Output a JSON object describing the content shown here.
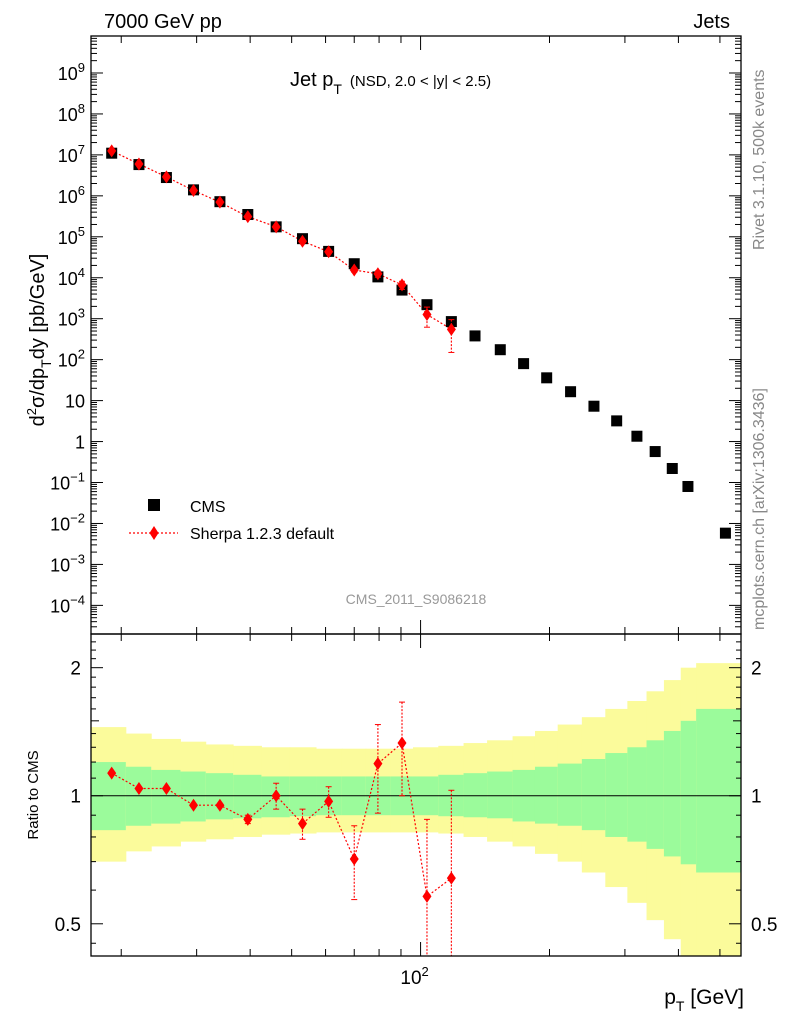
{
  "header": {
    "left": "7000 GeV pp",
    "right": "Jets"
  },
  "plot_title": {
    "main": "Jet p",
    "sub": "T",
    "detail": "(NSD, 2.0 < |y| < 2.5)"
  },
  "side_text": {
    "rivet": "Rivet 3.1.10,  500k events",
    "mcplots": "mcplots.cern.ch [arXiv:1306.3436]"
  },
  "analysis_id": "CMS_2011_S9086218",
  "legend": {
    "cms": "CMS",
    "sherpa": "Sherpa 1.2.3 default"
  },
  "axes": {
    "ylabel_main": "d²σ/dp_T dy [pb/GeV]",
    "ylabel_ratio": "Ratio to CMS",
    "xlabel": "p_T [GeV]"
  },
  "colors": {
    "data": "#000000",
    "mc": "#ff0000",
    "band_inner": "#9bfb9b",
    "band_outer": "#fbfb9b"
  },
  "chart_data": [
    {
      "type": "scatter",
      "title": "Jet pT (NSD, 2.0 < |y| < 2.5)",
      "xlabel": "pT [GeV]",
      "ylabel": "d2σ/dpT dy [pb/GeV]",
      "xscale": "log",
      "yscale": "log",
      "xlim": [
        17,
        560
      ],
      "ylim": [
        2e-05,
        8000000000
      ],
      "y_tick_labels": [
        "10^-4",
        "10^-3",
        "10^-2",
        "10^-1",
        "1",
        "10",
        "10^2",
        "10^3",
        "10^4",
        "10^5",
        "10^6",
        "10^7",
        "10^8",
        "10^9"
      ],
      "legend_position": "bottom-left",
      "series": [
        {
          "name": "CMS",
          "marker": "square",
          "x": [
            19,
            22,
            25.5,
            29.5,
            34,
            39.5,
            46,
            53,
            61,
            70,
            79.5,
            90.5,
            103.5,
            118,
            134,
            153.5,
            174,
            197,
            224,
            254,
            287,
            320,
            353,
            387,
            421,
            515
          ],
          "y": [
            11000000,
            5800000,
            2800000,
            1400000,
            720000,
            350000,
            175000,
            90000,
            44000,
            22000,
            10500,
            5000,
            2200,
            850,
            380,
            175,
            80,
            36,
            16.5,
            7.3,
            3.2,
            1.35,
            0.57,
            0.22,
            0.08,
            0.0058
          ]
        },
        {
          "name": "Sherpa 1.2.3 default",
          "marker": "diamond",
          "x": [
            19,
            22,
            25.5,
            29.5,
            34,
            39.5,
            46,
            53,
            61,
            70,
            79.5,
            90.5,
            103.5,
            118
          ],
          "y": [
            12500000,
            6000000,
            2900000,
            1350000,
            700000,
            310000,
            175000,
            78000,
            43000,
            15500,
            12500,
            6700,
            1270,
            550
          ],
          "y_err": [
            0,
            0,
            0,
            0,
            0,
            0,
            0,
            0,
            0,
            1800,
            2200,
            1500,
            650,
            400
          ]
        }
      ]
    },
    {
      "type": "scatter",
      "title": "",
      "xlabel": "pT [GeV]",
      "ylabel": "Ratio to CMS",
      "xscale": "log",
      "yscale": "log",
      "xlim": [
        17,
        560
      ],
      "ylim": [
        0.42,
        2.4
      ],
      "y_tick_labels": [
        "0.5",
        "1",
        "2"
      ],
      "x_tick_labels": [
        "10^2"
      ],
      "series": [
        {
          "name": "Sherpa 1.2.3 default",
          "x": [
            19,
            22,
            25.5,
            29.5,
            34,
            39.5,
            46,
            53,
            61,
            70,
            79.5,
            90.5,
            103.5,
            118
          ],
          "y": [
            1.13,
            1.04,
            1.04,
            0.95,
            0.95,
            0.88,
            1.0,
            0.86,
            0.97,
            0.71,
            1.19,
            1.33,
            0.58,
            0.64
          ],
          "y_err": [
            0,
            0,
            0,
            0,
            0,
            0.02,
            0.07,
            0.07,
            0.08,
            0.14,
            0.28,
            0.33,
            0.3,
            0.39
          ]
        }
      ],
      "bands": {
        "x_edges": [
          17,
          20.5,
          23.5,
          27.5,
          31.5,
          36.5,
          42.5,
          49.5,
          57,
          65.5,
          74.5,
          85,
          96,
          110,
          126,
          143,
          164,
          185,
          209,
          238,
          270,
          304,
          337,
          370,
          405,
          440,
          560
        ],
        "inner_low": [
          0.83,
          0.85,
          0.86,
          0.87,
          0.88,
          0.885,
          0.89,
          0.895,
          0.9,
          0.9,
          0.9,
          0.9,
          0.9,
          0.895,
          0.89,
          0.885,
          0.87,
          0.86,
          0.85,
          0.83,
          0.8,
          0.78,
          0.75,
          0.72,
          0.69,
          0.66
        ],
        "inner_high": [
          1.2,
          1.17,
          1.15,
          1.14,
          1.13,
          1.12,
          1.11,
          1.11,
          1.11,
          1.11,
          1.11,
          1.11,
          1.11,
          1.12,
          1.13,
          1.14,
          1.15,
          1.17,
          1.19,
          1.22,
          1.26,
          1.3,
          1.35,
          1.42,
          1.5,
          1.6
        ],
        "outer_low": [
          0.7,
          0.74,
          0.76,
          0.78,
          0.79,
          0.8,
          0.81,
          0.815,
          0.82,
          0.82,
          0.82,
          0.82,
          0.82,
          0.815,
          0.8,
          0.78,
          0.76,
          0.73,
          0.7,
          0.66,
          0.61,
          0.56,
          0.51,
          0.46,
          0.42,
          0.42
        ],
        "outer_high": [
          1.45,
          1.4,
          1.36,
          1.34,
          1.32,
          1.31,
          1.3,
          1.3,
          1.29,
          1.29,
          1.29,
          1.29,
          1.3,
          1.31,
          1.33,
          1.35,
          1.38,
          1.42,
          1.47,
          1.53,
          1.6,
          1.67,
          1.76,
          1.87,
          2.0,
          2.05
        ]
      }
    }
  ]
}
